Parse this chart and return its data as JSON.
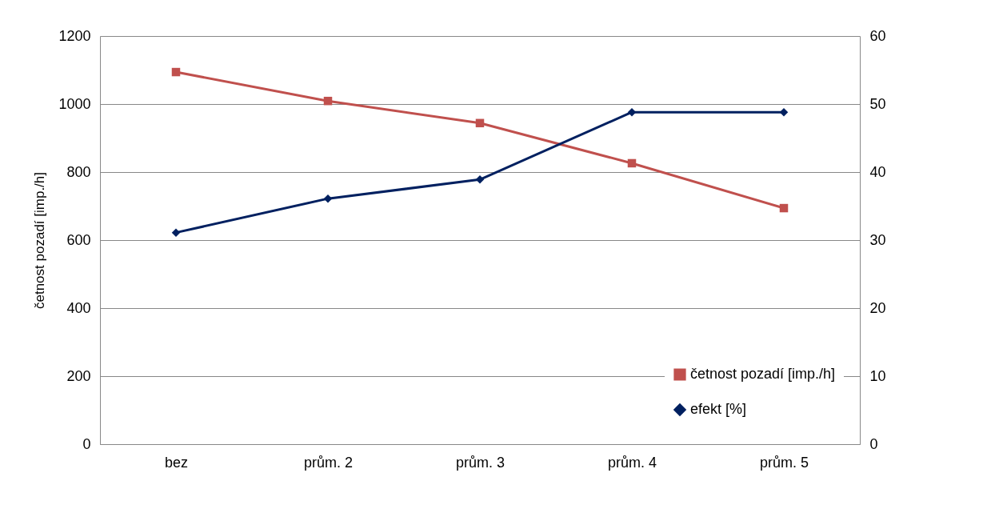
{
  "chart_data": {
    "type": "line",
    "categories": [
      "bez",
      "prům. 2",
      "prům. 3",
      "prům. 4",
      "prům. 5"
    ],
    "ylabel": "četnost pozadí [imp./h]",
    "ylim": [
      0,
      1200
    ],
    "yticks": [
      0,
      200,
      400,
      600,
      800,
      1000,
      1200
    ],
    "y2lim": [
      0,
      60
    ],
    "y2ticks": [
      0,
      10,
      20,
      30,
      40,
      50,
      60
    ],
    "grid": "y",
    "legend": "bottom right",
    "series": [
      {
        "name": "četnost pozadí [imp./h]",
        "color": "#c0504d",
        "marker": "square",
        "values": [
          1094,
          1009,
          944,
          826,
          694
        ]
      },
      {
        "name": "efekt [%]",
        "color": "#002060",
        "marker": "diamond",
        "axis": "y2",
        "values": [
          31.1,
          36.1,
          38.9,
          48.8,
          48.8
        ]
      }
    ]
  }
}
